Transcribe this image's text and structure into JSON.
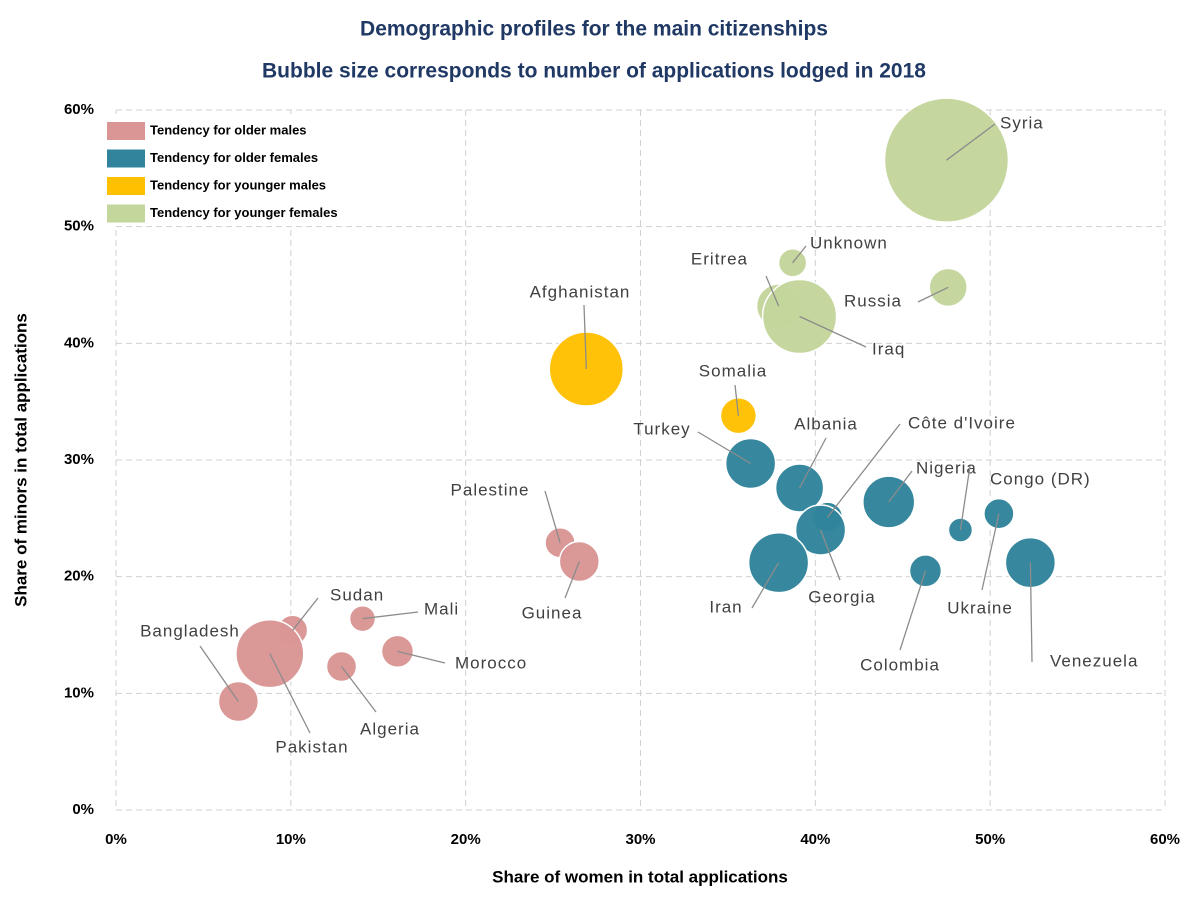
{
  "chart_data": {
    "type": "bubble",
    "title": "Demographic profiles for the main citizenships",
    "subtitle": "Bubble size corresponds to number of applications lodged in 2018",
    "x_label": "Share of women in total applications",
    "y_label": "Share of minors in total applications",
    "xlim": [
      0,
      60
    ],
    "ylim": [
      0,
      60
    ],
    "xticks": [
      {
        "value": 0,
        "label": "0%"
      },
      {
        "value": 10,
        "label": "10%"
      },
      {
        "value": 20,
        "label": "20%"
      },
      {
        "value": 30,
        "label": "30%"
      },
      {
        "value": 40,
        "label": "40%"
      },
      {
        "value": 50,
        "label": "50%"
      },
      {
        "value": 60,
        "label": "60%"
      }
    ],
    "yticks": [
      {
        "value": 0,
        "label": "0%"
      },
      {
        "value": 10,
        "label": "10%"
      },
      {
        "value": 20,
        "label": "20%"
      },
      {
        "value": 30,
        "label": "30%"
      },
      {
        "value": 40,
        "label": "40%"
      },
      {
        "value": 50,
        "label": "50%"
      },
      {
        "value": 60,
        "label": "60%"
      }
    ],
    "grid": true,
    "legend": "top-left",
    "series": [
      {
        "name": "Tendency for older males",
        "color": "#d99694",
        "labels": [
          "Palestine",
          "Guinea",
          "Sudan",
          "Mali",
          "Morocco",
          "Algeria",
          "Pakistan",
          "Bangladesh"
        ],
        "x": [
          25.4,
          26.5,
          10.1,
          14.1,
          16.1,
          12.9,
          8.8,
          7.0
        ],
        "values": [
          22.9,
          21.3,
          15.4,
          16.4,
          13.6,
          12.3,
          13.4,
          9.3
        ],
        "sizes": [
          4.7,
          8.3,
          4.7,
          3.5,
          5.3,
          4.7,
          24,
          8.3
        ]
      },
      {
        "name": "Tendency for older females",
        "color": "#31849b",
        "labels": [
          "Turkey",
          "Albania",
          "Côte d'Ivoire",
          "Georgia",
          "Nigeria",
          "Congo (DR)",
          "Ukraine",
          "Colombia",
          "Venezuela",
          "Iran"
        ],
        "x": [
          36.3,
          39.1,
          40.7,
          40.3,
          44.2,
          48.3,
          50.5,
          46.3,
          52.3,
          37.9
        ],
        "values": [
          29.7,
          27.6,
          25.1,
          24.0,
          26.4,
          24.0,
          25.4,
          20.5,
          21.2,
          21.2
        ],
        "sizes": [
          13,
          12,
          4.7,
          13,
          14,
          3,
          4.7,
          5.3,
          13,
          18.7
        ]
      },
      {
        "name": "Tendency for younger males",
        "color": "#ffc000",
        "labels": [
          "Afghanistan",
          "Somalia"
        ],
        "x": [
          26.9,
          35.6
        ],
        "values": [
          37.8,
          33.8
        ],
        "sizes": [
          28.5,
          6.7
        ]
      },
      {
        "name": "Tendency for younger females",
        "color": "#c3d69b",
        "labels": [
          "Syria",
          "Unknown",
          "Eritrea",
          "Iraq",
          "Russia"
        ],
        "x": [
          47.5,
          38.7,
          37.9,
          39.1,
          47.6
        ],
        "values": [
          55.7,
          46.9,
          43.2,
          42.3,
          44.8
        ],
        "sizes": [
          80,
          4.1,
          10.1,
          28.5,
          7.5
        ]
      }
    ]
  }
}
